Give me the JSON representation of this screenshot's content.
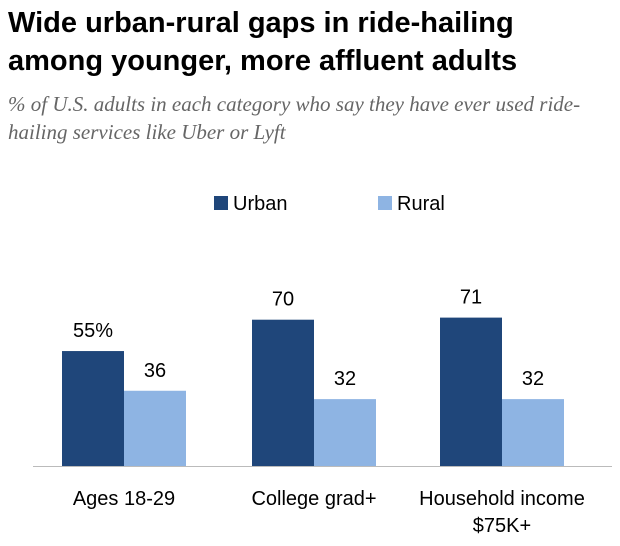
{
  "title": "Wide urban-rural gaps in ride-hailing among younger, more affluent adults",
  "subtitle": "% of U.S. adults in each category who say they have ever used ride-hailing services like Uber or Lyft",
  "chart_data": {
    "type": "bar",
    "title": "Wide urban-rural gaps in ride-hailing among younger, more affluent adults",
    "subtitle": "% of U.S. adults in each category who say they have ever used ride-hailing services like Uber or Lyft",
    "categories": [
      [
        "Ages 18-29"
      ],
      [
        "College grad+"
      ],
      [
        "Household income",
        "$75K+"
      ]
    ],
    "series": [
      {
        "name": "Urban",
        "color": "#1f467a",
        "values": [
          55,
          70,
          71
        ],
        "labels": [
          "55%",
          "70",
          "71"
        ]
      },
      {
        "name": "Rural",
        "color": "#8eb4e3",
        "values": [
          36,
          32,
          32
        ],
        "labels": [
          "36",
          "32",
          "32"
        ]
      }
    ],
    "ylim": [
      0,
      100
    ],
    "grid": false,
    "legend_position": "top-center",
    "xlabel": "",
    "ylabel": ""
  }
}
